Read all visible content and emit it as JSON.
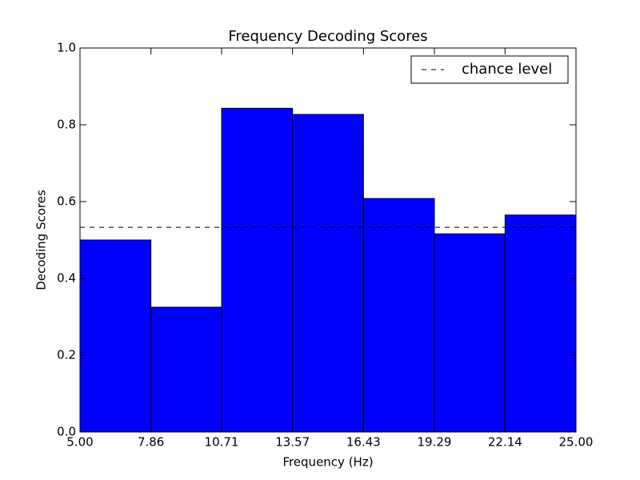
{
  "chart_data": {
    "type": "histogram",
    "title": "Frequency Decoding Scores",
    "x_label": "Frequency (Hz)",
    "y_label": "Decoding Scores",
    "bins": [
      5,
      7.86,
      10.71,
      13.57,
      16.43,
      19.29,
      22.14,
      25
    ],
    "values": [
      0.5,
      0.325,
      0.843,
      0.827,
      0.608,
      0.516,
      0.565
    ],
    "color": "#0000ff",
    "reference_line": {
      "name": "chance level",
      "value": 0.533,
      "color": "#000000",
      "style": "dashed"
    },
    "legend": "upper right",
    "xlim": [
      5,
      25
    ],
    "xticks": [
      {
        "value": 5,
        "label": "5.00"
      },
      7.86,
      10.71,
      13.57,
      16.43,
      19.29,
      22.14,
      {
        "value": 25,
        "label": "25.00"
      }
    ],
    "ylim": [
      0,
      1
    ],
    "yticks": [
      {
        "value": 0,
        "label": "0.0"
      },
      0.2,
      0.4,
      0.6,
      0.8,
      {
        "value": 1,
        "label": "1.0"
      }
    ]
  }
}
